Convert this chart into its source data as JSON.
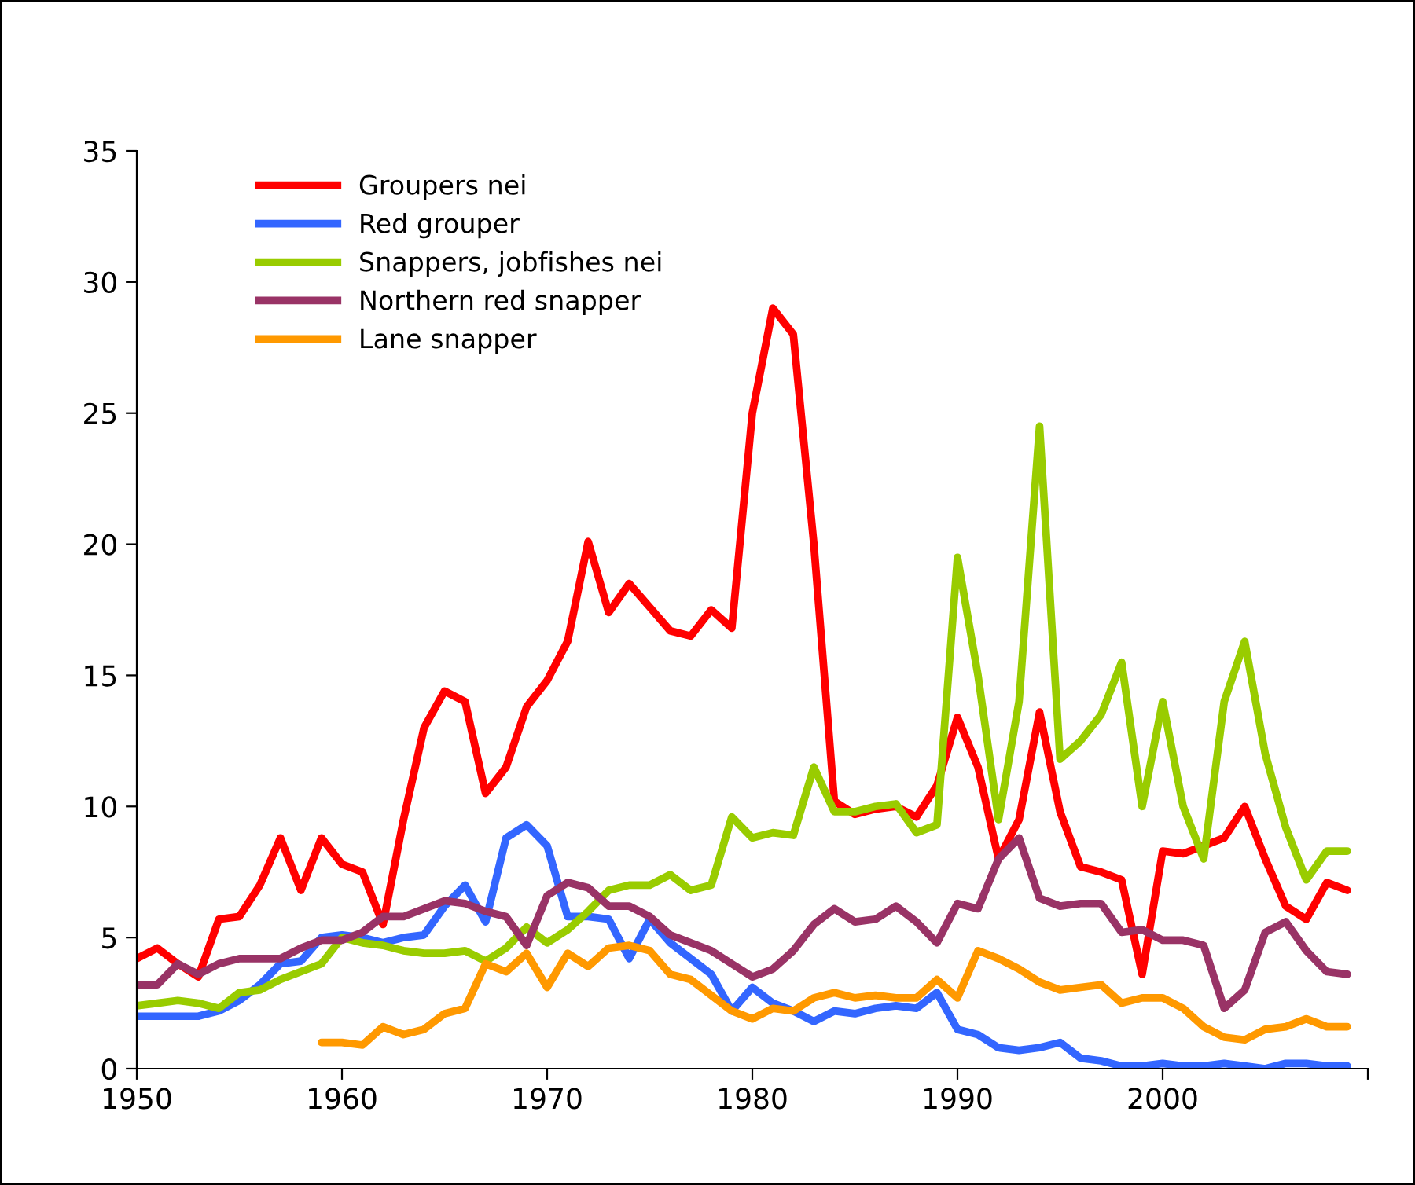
{
  "chart_data": {
    "type": "line",
    "x": [
      1950,
      1951,
      1952,
      1953,
      1954,
      1955,
      1956,
      1957,
      1958,
      1959,
      1960,
      1961,
      1962,
      1963,
      1964,
      1965,
      1966,
      1967,
      1968,
      1969,
      1970,
      1971,
      1972,
      1973,
      1974,
      1975,
      1976,
      1977,
      1978,
      1979,
      1980,
      1981,
      1982,
      1983,
      1984,
      1985,
      1986,
      1987,
      1988,
      1989,
      1990,
      1991,
      1992,
      1993,
      1994,
      1995,
      1996,
      1997,
      1998,
      1999,
      2000,
      2001,
      2002,
      2003,
      2004,
      2005,
      2006,
      2007,
      2008,
      2009
    ],
    "series": [
      {
        "name": "Groupers nei",
        "color": "#ff0000",
        "values": [
          4.2,
          4.6,
          4.0,
          3.5,
          5.7,
          5.8,
          7.0,
          8.8,
          6.8,
          8.8,
          7.8,
          7.5,
          5.5,
          9.5,
          13.0,
          14.4,
          14.0,
          10.5,
          11.5,
          13.8,
          14.8,
          16.3,
          20.1,
          17.4,
          18.5,
          17.6,
          16.7,
          16.5,
          17.5,
          16.8,
          25.0,
          29.0,
          28.0,
          20.0,
          10.2,
          9.7,
          9.9,
          10.0,
          9.6,
          10.8,
          13.4,
          11.5,
          8.0,
          9.5,
          13.6,
          9.8,
          7.7,
          7.5,
          7.2,
          3.6,
          8.3,
          8.2,
          8.5,
          8.8,
          10.0,
          8.0,
          6.2,
          5.7,
          7.1,
          6.8
        ]
      },
      {
        "name": "Red grouper",
        "color": "#3366ff",
        "values": [
          2.0,
          2.0,
          2.0,
          2.0,
          2.2,
          2.6,
          3.2,
          4.0,
          4.1,
          5.0,
          5.1,
          5.0,
          4.8,
          5.0,
          5.1,
          6.2,
          7.0,
          5.6,
          8.8,
          9.3,
          8.5,
          5.8,
          5.8,
          5.7,
          4.2,
          5.7,
          4.8,
          4.2,
          3.6,
          2.2,
          3.1,
          2.5,
          2.2,
          1.8,
          2.2,
          2.1,
          2.3,
          2.4,
          2.3,
          2.9,
          1.5,
          1.3,
          0.8,
          0.7,
          0.8,
          1.0,
          0.4,
          0.3,
          0.1,
          0.1,
          0.2,
          0.1,
          0.1,
          0.2,
          0.1,
          0.0,
          0.2,
          0.2,
          0.1,
          0.1
        ]
      },
      {
        "name": "Snappers, jobfishes nei",
        "color": "#99cc00",
        "values": [
          2.4,
          2.5,
          2.6,
          2.5,
          2.3,
          2.9,
          3.0,
          3.4,
          3.7,
          4.0,
          5.0,
          4.8,
          4.7,
          4.5,
          4.4,
          4.4,
          4.5,
          4.1,
          4.6,
          5.4,
          4.8,
          5.3,
          6.0,
          6.8,
          7.0,
          7.0,
          7.4,
          6.8,
          7.0,
          9.6,
          8.8,
          9.0,
          8.9,
          11.5,
          9.8,
          9.8,
          10.0,
          10.1,
          9.0,
          9.3,
          19.5,
          15.0,
          9.5,
          14.0,
          24.5,
          11.8,
          12.5,
          13.5,
          15.5,
          10.0,
          14.0,
          10.0,
          8.0,
          14.0,
          16.3,
          12.0,
          9.2,
          7.2,
          8.3,
          8.3
        ]
      },
      {
        "name": "Northern red snapper",
        "color": "#993366",
        "values": [
          3.2,
          3.2,
          4.0,
          3.6,
          4.0,
          4.2,
          4.2,
          4.2,
          4.6,
          4.9,
          4.9,
          5.2,
          5.8,
          5.8,
          6.1,
          6.4,
          6.3,
          6.0,
          5.8,
          4.7,
          6.6,
          7.1,
          6.9,
          6.2,
          6.2,
          5.8,
          5.1,
          4.8,
          4.5,
          4.0,
          3.5,
          3.8,
          4.5,
          5.5,
          6.1,
          5.6,
          5.7,
          6.2,
          5.6,
          4.8,
          6.3,
          6.1,
          8.0,
          8.8,
          6.5,
          6.2,
          6.3,
          6.3,
          5.2,
          5.3,
          4.9,
          4.9,
          4.7,
          2.3,
          3.0,
          5.2,
          5.6,
          4.5,
          3.7,
          3.6
        ]
      },
      {
        "name": "Lane snapper",
        "color": "#ff9900",
        "values": [
          null,
          null,
          null,
          null,
          null,
          null,
          null,
          null,
          null,
          1.0,
          1.0,
          0.9,
          1.6,
          1.3,
          1.5,
          2.1,
          2.3,
          4.0,
          3.7,
          4.4,
          3.1,
          4.4,
          3.9,
          4.6,
          4.7,
          4.5,
          3.6,
          3.4,
          2.8,
          2.2,
          1.9,
          2.3,
          2.2,
          2.7,
          2.9,
          2.7,
          2.8,
          2.7,
          2.7,
          3.4,
          2.7,
          4.5,
          4.2,
          3.8,
          3.3,
          3.0,
          3.1,
          3.2,
          2.5,
          2.7,
          2.7,
          2.3,
          1.6,
          1.2,
          1.1,
          1.5,
          1.6,
          1.9,
          1.6,
          1.6
        ]
      }
    ],
    "xlim": [
      1950,
      2010
    ],
    "xticks": [
      1950,
      1960,
      1970,
      1980,
      1990,
      2000,
      {
        "value": 2010,
        "label": null
      }
    ],
    "ylim": [
      0,
      35
    ],
    "yticks": [
      0,
      5,
      10,
      15,
      20,
      25,
      30,
      35
    ],
    "grid": false,
    "legend": "top left",
    "marker": "none",
    "line_style": "solid"
  }
}
